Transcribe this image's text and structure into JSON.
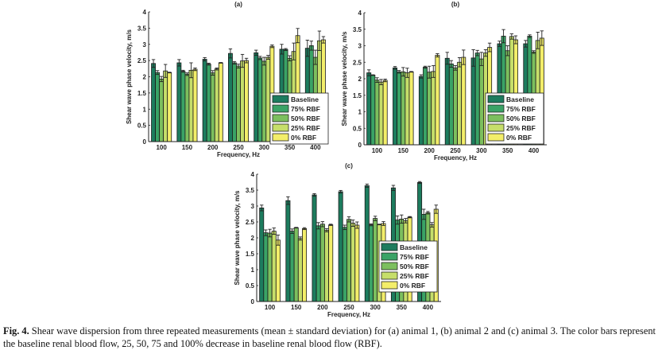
{
  "caption": {
    "label": "Fig. 4.",
    "text": " Shear wave dispersion from three repeated measurements (mean ± standard deviation) for (a) animal 1, (b) animal 2 and (c) animal 3. The color bars represent the baseline renal blood flow, 25, 50, 75 and 100% decrease in baseline renal blood flow (RBF)."
  },
  "colors": {
    "Baseline": "#1d7c5e",
    "75% RBF": "#3aa366",
    "50% RBF": "#7cbf5e",
    "25% RBF": "#c6de6a",
    "0% RBF": "#f3ee6a"
  },
  "chart_data": [
    {
      "id": "a",
      "type": "bar",
      "title": "(a)",
      "xlabel": "Frequency, Hz",
      "ylabel": "Shear wave phase velocity, m/s",
      "ylim": [
        0,
        4
      ],
      "yticks": [
        "0",
        "0.5",
        "1",
        "1.5",
        "2",
        "2.5",
        "3",
        "3.5",
        "4"
      ],
      "categories": [
        "100",
        "150",
        "200",
        "250",
        "300",
        "350",
        "400"
      ],
      "legend_position": "bottom-right",
      "series": [
        {
          "name": "Baseline",
          "values": [
            2.41,
            2.43,
            2.54,
            2.72,
            2.74,
            2.85,
            2.88
          ],
          "errors": [
            0.12,
            0.1,
            0.05,
            0.14,
            0.08,
            0.15,
            0.25
          ]
        },
        {
          "name": "75% RBF",
          "values": [
            2.13,
            2.17,
            2.39,
            2.43,
            2.58,
            2.84,
            2.96
          ],
          "errors": [
            0.06,
            0.03,
            0.03,
            0.04,
            0.05,
            0.03,
            0.14
          ]
        },
        {
          "name": "50% RBF",
          "values": [
            1.93,
            2.08,
            2.12,
            2.33,
            2.48,
            2.57,
            2.6
          ],
          "errors": [
            0.08,
            0.04,
            0.07,
            0.06,
            0.12,
            0.08,
            0.22
          ]
        },
        {
          "name": "25% RBF",
          "values": [
            2.18,
            2.2,
            2.24,
            2.49,
            2.6,
            2.78,
            3.11
          ],
          "errors": [
            0.2,
            0.23,
            0.03,
            0.2,
            0.06,
            0.26,
            0.3
          ]
        },
        {
          "name": "0% RBF",
          "values": [
            2.13,
            2.23,
            2.43,
            2.5,
            2.94,
            3.27,
            3.14
          ],
          "errors": [
            0.01,
            0.04,
            0.01,
            0.07,
            0.04,
            0.22,
            0.1
          ]
        }
      ]
    },
    {
      "id": "b",
      "type": "bar",
      "title": "(b)",
      "xlabel": "Frequency, Hz",
      "ylabel": "Shear wave phase velocity, m/s",
      "ylim": [
        0,
        4
      ],
      "yticks": [
        "0",
        "0.5",
        "1",
        "1.5",
        "2",
        "2.5",
        "3",
        "3.5",
        "4"
      ],
      "categories": [
        "100",
        "150",
        "200",
        "250",
        "300",
        "350",
        "400"
      ],
      "legend_position": "bottom-right",
      "series": [
        {
          "name": "Baseline",
          "values": [
            2.18,
            2.33,
            2.07,
            2.62,
            2.63,
            3.06,
            3.06
          ],
          "errors": [
            0.09,
            0.04,
            0.05,
            0.18,
            0.25,
            0.08,
            0.1
          ]
        },
        {
          "name": "75% RBF",
          "values": [
            2.11,
            2.21,
            2.35,
            2.45,
            2.78,
            3.29,
            3.29
          ],
          "errors": [
            0.01,
            0.04,
            0.03,
            0.1,
            0.08,
            0.2,
            0.04
          ]
        },
        {
          "name": "50% RBF",
          "values": [
            1.96,
            2.21,
            2.2,
            2.33,
            2.6,
            2.85,
            2.81
          ],
          "errors": [
            0.07,
            0.13,
            0.18,
            0.07,
            0.2,
            0.15,
            0.04
          ]
        },
        {
          "name": "25% RBF",
          "values": [
            1.9,
            2.18,
            2.22,
            2.5,
            2.78,
            3.28,
            3.16
          ],
          "errors": [
            0.08,
            0.14,
            0.18,
            0.14,
            0.1,
            0.08,
            0.25
          ]
        },
        {
          "name": "0% RBF",
          "values": [
            1.95,
            2.21,
            2.71,
            2.65,
            2.95,
            3.18,
            3.23
          ],
          "errors": [
            0.04,
            0.01,
            0.05,
            0.22,
            0.13,
            0.12,
            0.22
          ]
        }
      ]
    },
    {
      "id": "c",
      "type": "bar",
      "title": "(c)",
      "xlabel": "Frequency, Hz",
      "ylabel": "Shear wave phase velocity, m/s",
      "ylim": [
        0,
        4
      ],
      "yticks": [
        "0",
        "0.5",
        "1",
        "1.5",
        "2",
        "2.5",
        "3",
        "3.5",
        "4"
      ],
      "categories": [
        "100",
        "150",
        "200",
        "250",
        "300",
        "350",
        "400"
      ],
      "legend_position": "bottom-right",
      "series": [
        {
          "name": "Baseline",
          "values": [
            2.94,
            3.17,
            3.35,
            3.45,
            3.64,
            3.57,
            3.74
          ],
          "errors": [
            0.09,
            0.12,
            0.04,
            0.04,
            0.05,
            0.08,
            0.03
          ]
        },
        {
          "name": "75% RBF",
          "values": [
            2.16,
            2.21,
            2.38,
            2.33,
            2.41,
            2.56,
            2.74
          ],
          "errors": [
            0.09,
            0.07,
            0.1,
            0.07,
            0.03,
            0.13,
            0.16
          ]
        },
        {
          "name": "50% RBF",
          "values": [
            2.15,
            2.32,
            2.43,
            2.58,
            2.61,
            2.59,
            2.79
          ],
          "errors": [
            0.12,
            0.01,
            0.08,
            0.08,
            0.07,
            0.13,
            0.04
          ]
        },
        {
          "name": "25% RBF",
          "values": [
            2.21,
            1.98,
            2.24,
            2.46,
            2.42,
            2.54,
            2.41
          ],
          "errors": [
            0.1,
            0.05,
            0.05,
            0.1,
            0.01,
            0.07,
            0.07
          ]
        },
        {
          "name": "0% RBF",
          "values": [
            1.93,
            2.29,
            2.41,
            2.4,
            2.45,
            2.65,
            2.9
          ],
          "errors": [
            0.16,
            0.03,
            0.02,
            0.1,
            0.06,
            0.02,
            0.13
          ]
        }
      ]
    }
  ]
}
